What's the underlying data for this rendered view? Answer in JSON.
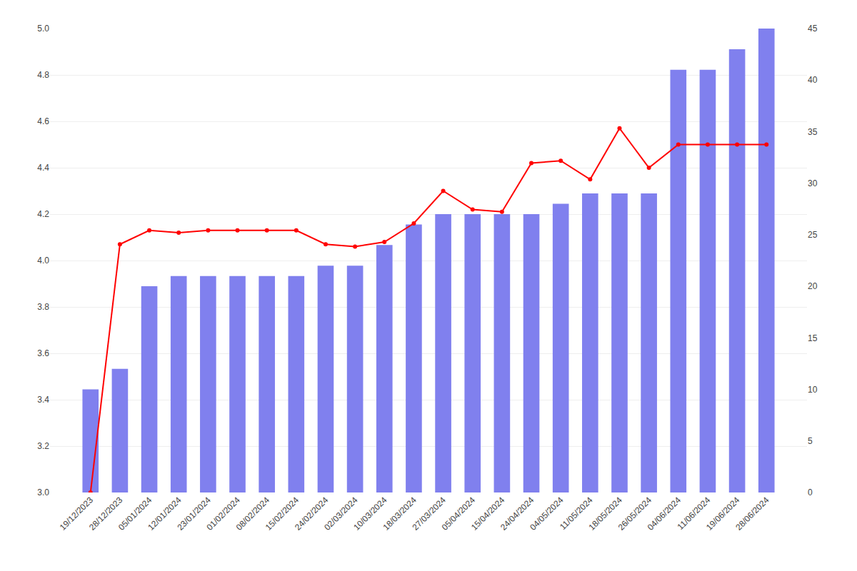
{
  "chart_data": {
    "type": "bar",
    "categories": [
      "19/12/2023",
      "28/12/2023",
      "05/01/2024",
      "12/01/2024",
      "23/01/2024",
      "01/02/2024",
      "08/02/2024",
      "15/02/2024",
      "24/02/2024",
      "02/03/2024",
      "10/03/2024",
      "18/03/2024",
      "27/03/2024",
      "05/04/2024",
      "15/04/2024",
      "24/04/2024",
      "04/05/2024",
      "11/05/2024",
      "18/05/2024",
      "26/05/2024",
      "04/06/2024",
      "11/06/2024",
      "19/06/2024",
      "28/06/2024"
    ],
    "series": [
      {
        "type": "bar",
        "color": "#8080ee",
        "axis": "y2",
        "values": [
          10,
          12,
          20,
          21,
          21,
          21,
          21,
          21,
          22,
          22,
          24,
          26,
          27,
          27,
          27,
          27,
          28,
          29,
          29,
          29,
          41,
          41,
          43,
          45
        ]
      },
      {
        "type": "line",
        "color": "#ff0000",
        "marker": "circle",
        "values": [
          3.0,
          4.07,
          4.13,
          4.12,
          4.13,
          4.13,
          4.13,
          4.13,
          4.07,
          4.06,
          4.08,
          4.16,
          4.3,
          4.22,
          4.21,
          4.42,
          4.43,
          4.35,
          4.57,
          4.4,
          4.5,
          4.5,
          4.5,
          4.5
        ]
      }
    ],
    "ylim": [
      3.0,
      5.0
    ],
    "yticks": [
      {
        "value": 3.0,
        "label": "3.0"
      },
      3.2,
      3.4,
      3.6,
      3.8,
      {
        "value": 4.0,
        "label": "4.0"
      },
      4.2,
      4.4,
      4.6,
      4.8,
      {
        "value": 5.0,
        "label": "5.0"
      }
    ],
    "y2lim": [
      0,
      45
    ],
    "y2ticks": [
      0,
      5,
      10,
      15,
      20,
      25,
      30,
      35,
      40,
      45
    ],
    "grid": true
  }
}
